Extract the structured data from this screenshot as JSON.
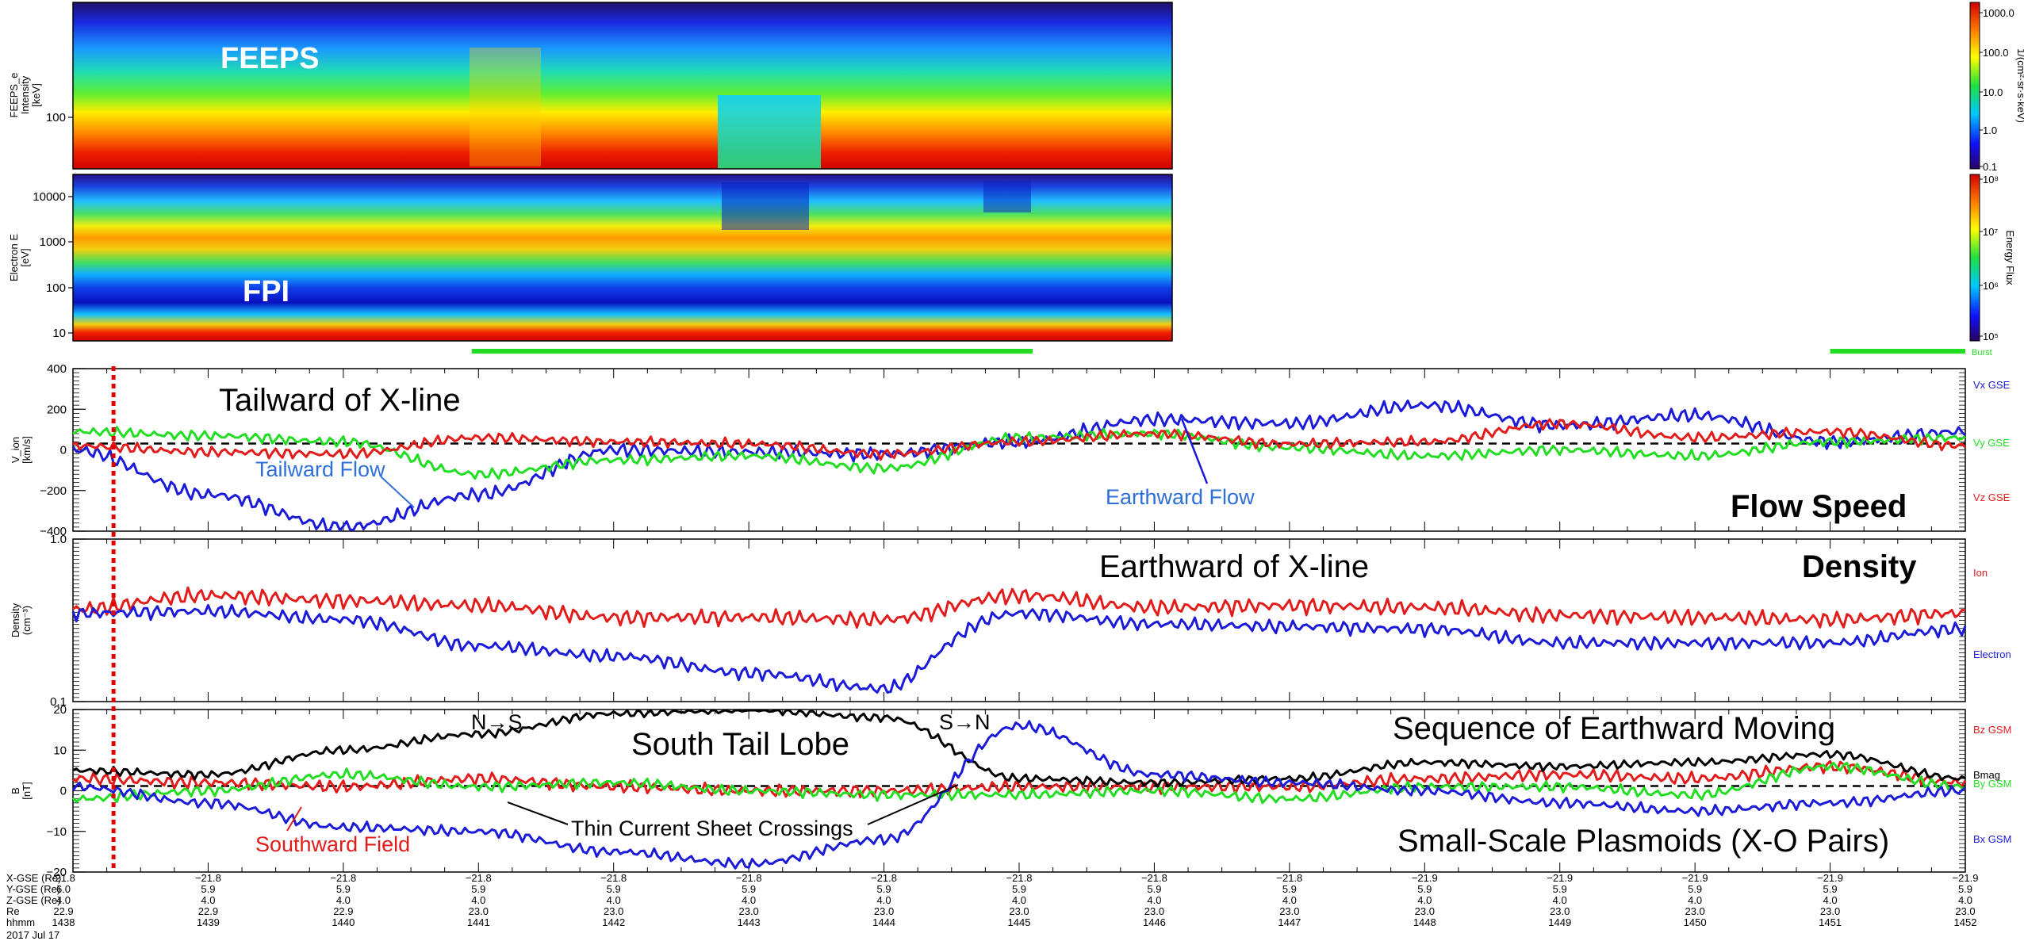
{
  "chart_data": [
    {
      "type": "heatmap",
      "panel": "feeps",
      "label": "FEEPS",
      "ylabel": [
        "FEEPS_e",
        "Intensity",
        "[keV]"
      ],
      "yticks": [
        "100"
      ],
      "colorbar_ticks": [
        "1000.0",
        "100.0",
        "10.0",
        "1.0",
        "0.1"
      ],
      "colorbar_label": "1/(cm²·sr·s·keV)"
    },
    {
      "type": "heatmap",
      "panel": "fpi",
      "label": "FPI",
      "ylabel": [
        "Electron E",
        "[eV]"
      ],
      "yticks": [
        "10000",
        "1000",
        "100",
        "10"
      ],
      "colorbar_ticks": [
        "10⁸",
        "10⁷",
        "10⁶",
        "10⁵"
      ],
      "colorbar_label": "Energy Flux",
      "burst_label": "Burst",
      "burst_intervals": [
        [
          1440.95,
          1445.1
        ],
        [
          1451.0,
          1452.0
        ]
      ]
    },
    {
      "type": "line",
      "panel": "velocity",
      "ylabel": [
        "V_ion",
        "[km/s]"
      ],
      "ylim": [
        -400,
        400
      ],
      "yticks": [
        "400",
        "200",
        "0",
        "−200",
        "−400"
      ],
      "x": [
        1438,
        1439,
        1440,
        1441,
        1442,
        1443,
        1444,
        1445,
        1446,
        1447,
        1448,
        1449,
        1450,
        1451,
        1452
      ],
      "series": [
        {
          "name": "Vx GSE",
          "color": "#1a1ad8",
          "values": [
            0,
            -220,
            -380,
            -220,
            0,
            -10,
            -20,
            40,
            150,
            130,
            220,
            120,
            170,
            40,
            90
          ]
        },
        {
          "name": "Vy GSE",
          "color": "#22dd22",
          "values": [
            90,
            70,
            40,
            -120,
            -50,
            -30,
            -90,
            60,
            80,
            10,
            -30,
            0,
            -30,
            40,
            60
          ]
        },
        {
          "name": "Vz GSE",
          "color": "#e21b1b",
          "values": [
            20,
            -10,
            -20,
            60,
            40,
            30,
            -20,
            40,
            80,
            30,
            40,
            130,
            60,
            90,
            20
          ]
        }
      ],
      "annotations": [
        "Tailward of X-line",
        "Tailward Flow",
        "Earthward Flow",
        "Flow Speed"
      ]
    },
    {
      "type": "line",
      "panel": "density",
      "ylabel": [
        "Density",
        "(cm⁻³)"
      ],
      "ylim": [
        0.1,
        1.0
      ],
      "scale": "log",
      "yticks": [
        "1.0",
        "0.1"
      ],
      "x": [
        1438,
        1439,
        1440,
        1441,
        1442,
        1443,
        1444,
        1445,
        1446,
        1447,
        1448,
        1449,
        1450,
        1451,
        1452
      ],
      "series": [
        {
          "name": "Ion",
          "color": "#e21b1b",
          "values": [
            0.37,
            0.45,
            0.42,
            0.39,
            0.33,
            0.33,
            0.32,
            0.45,
            0.38,
            0.39,
            0.38,
            0.34,
            0.33,
            0.32,
            0.35
          ]
        },
        {
          "name": "Electron",
          "color": "#1a1ad8",
          "values": [
            0.35,
            0.36,
            0.32,
            0.22,
            0.19,
            0.15,
            0.12,
            0.35,
            0.3,
            0.29,
            0.28,
            0.23,
            0.23,
            0.23,
            0.28
          ]
        }
      ],
      "annotations": [
        "Earthward of X-line",
        "Density"
      ]
    },
    {
      "type": "line",
      "panel": "magnetic",
      "ylabel": [
        "B",
        "[nT]"
      ],
      "ylim": [
        -20,
        20
      ],
      "yticks": [
        "20",
        "10",
        "0",
        "−10",
        "−20"
      ],
      "x": [
        1438,
        1439,
        1440,
        1441,
        1442,
        1443,
        1444,
        1445,
        1446,
        1447,
        1448,
        1449,
        1450,
        1451,
        1452
      ],
      "series": [
        {
          "name": "Bz GSM",
          "color": "#e21b1b",
          "values": [
            3,
            2,
            1,
            3,
            1,
            0,
            0,
            1,
            1,
            1,
            3,
            4,
            3,
            6,
            2
          ]
        },
        {
          "name": "Bmag",
          "color": "#000000",
          "values": [
            5,
            4,
            10,
            14,
            19,
            20,
            18,
            3,
            2,
            3,
            7,
            6,
            7,
            9,
            3
          ]
        },
        {
          "name": "By GSM",
          "color": "#22dd22",
          "values": [
            -2,
            0,
            4,
            1,
            2,
            0,
            -1,
            -1,
            0,
            -2,
            1,
            1,
            -1,
            6,
            1
          ]
        },
        {
          "name": "Bx GSM",
          "color": "#1a1ad8",
          "values": [
            1,
            -3,
            -9,
            -10,
            -15,
            -18,
            -12,
            16,
            4,
            2,
            0,
            -3,
            -5,
            -3,
            0
          ]
        }
      ],
      "annotations": [
        "N→S",
        "S→N",
        "South Tail Lobe",
        "Sequence of Earthward Moving",
        "Thin Current Sheet Crossings",
        "Southward Field",
        "Small-Scale Plasmoids  (X-O Pairs)"
      ]
    }
  ],
  "axis": {
    "row_labels": [
      "X-GSE (Re)",
      "Y-GSE (Re)",
      "Z-GSE (Re)",
      "Re",
      "hhmm"
    ],
    "date": "2017 Jul 17",
    "columns": [
      {
        "x": "-21.8",
        "y": "6.0",
        "z": "4.0",
        "re": "22.9",
        "t": "1438"
      },
      {
        "x": "−21.8",
        "y": "5.9",
        "z": "4.0",
        "re": "22.9",
        "t": "1439"
      },
      {
        "x": "−21.8",
        "y": "5.9",
        "z": "4.0",
        "re": "22.9",
        "t": "1440"
      },
      {
        "x": "−21.8",
        "y": "5.9",
        "z": "4.0",
        "re": "23.0",
        "t": "1441"
      },
      {
        "x": "−21.8",
        "y": "5.9",
        "z": "4.0",
        "re": "23.0",
        "t": "1442"
      },
      {
        "x": "−21.8",
        "y": "5.9",
        "z": "4.0",
        "re": "23.0",
        "t": "1443"
      },
      {
        "x": "−21.8",
        "y": "5.9",
        "z": "4.0",
        "re": "23.0",
        "t": "1444"
      },
      {
        "x": "−21.8",
        "y": "5.9",
        "z": "4.0",
        "re": "23.0",
        "t": "1445"
      },
      {
        "x": "−21.8",
        "y": "5.9",
        "z": "4.0",
        "re": "23.0",
        "t": "1446"
      },
      {
        "x": "−21.8",
        "y": "5.9",
        "z": "4.0",
        "re": "23.0",
        "t": "1447"
      },
      {
        "x": "−21.9",
        "y": "5.9",
        "z": "4.0",
        "re": "23.0",
        "t": "1448"
      },
      {
        "x": "−21.9",
        "y": "5.9",
        "z": "4.0",
        "re": "23.0",
        "t": "1449"
      },
      {
        "x": "−21.9",
        "y": "5.9",
        "z": "4.0",
        "re": "23.0",
        "t": "1450"
      },
      {
        "x": "−21.9",
        "y": "5.9",
        "z": "4.0",
        "re": "23.0",
        "t": "1451"
      },
      {
        "x": "−21.9",
        "y": "5.9",
        "z": "4.0",
        "re": "23.0",
        "t": "1452"
      }
    ]
  },
  "marker_time": 1438.3,
  "colors": {
    "blue": "#1a1ad8",
    "green": "#22dd22",
    "red": "#e21b1b",
    "annotation_blue": "#2f6fd9",
    "marker": "#e00000"
  }
}
